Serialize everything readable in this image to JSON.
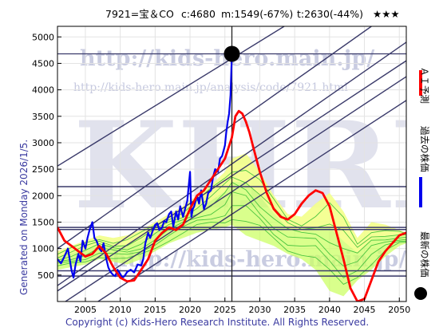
{
  "header": {
    "ticker": "7921=宝＆CO",
    "current": "c:4680",
    "min_label": "m:1549(-67%)",
    "target_label": "t:2630(-44%)",
    "rating": "★★★"
  },
  "side_note": "Generated on Monday 2026/1/5.",
  "legend": {
    "prediction": "ＡＩ予測",
    "past": "過去の株価",
    "latest": "最新の株価"
  },
  "watermark": {
    "url_main": "http://kids-hero.main.jp/",
    "url_sub": "http://kids-hero.main.jp/analysis/code/7921.html",
    "big": "KHRI",
    "url_lower": "http://kids-hero.main.jp/"
  },
  "copyright": "Copyright (c) Kids-Hero Research Institute. All Rights Reserved.",
  "colors": {
    "past": "#0000ee",
    "prediction": "#ff0000",
    "band_fill": "#ccff66",
    "band_alt": "#ffff99",
    "band_lines": "#33bb33",
    "channel": "#3a3a6a",
    "latest_dot": "#000000"
  },
  "chart_data": {
    "type": "line",
    "xlim": [
      2001,
      2051
    ],
    "ylim": [
      0,
      5200
    ],
    "x_ticks": [
      2005,
      2010,
      2015,
      2020,
      2025,
      2030,
      2035,
      2040,
      2045,
      2050
    ],
    "y_ticks": [
      500,
      1000,
      1500,
      2000,
      2500,
      3000,
      3500,
      4000,
      4500,
      5000
    ],
    "latest": {
      "x": 2026.0,
      "y": 4680
    },
    "horizontal_levels": [
      4680,
      2170,
      1400,
      1360,
      580,
      480
    ],
    "channels": [
      {
        "x": [
          2001,
          2033.5
        ],
        "y": [
          2560,
          5200
        ]
      },
      {
        "x": [
          2001,
          2046
        ],
        "y": [
          1000,
          5200
        ]
      },
      {
        "x": [
          2001,
          2051
        ],
        "y": [
          300,
          4900
        ]
      },
      {
        "x": [
          2001,
          2051
        ],
        "y": [
          200,
          4550
        ]
      },
      {
        "x": [
          2001,
          2051
        ],
        "y": [
          -100,
          4250
        ]
      },
      {
        "x": [
          2001,
          2051
        ],
        "y": [
          -500,
          3800
        ]
      }
    ],
    "series": [
      {
        "id": "past",
        "x": [
          2001,
          2001.5,
          2002,
          2002.5,
          2003,
          2003.3,
          2003.6,
          2004,
          2004.3,
          2004.6,
          2005,
          2005.3,
          2005.6,
          2006,
          2006.3,
          2006.6,
          2007,
          2007.3,
          2007.6,
          2008,
          2008.3,
          2008.6,
          2009,
          2009.3,
          2009.6,
          2010,
          2010.3,
          2010.6,
          2011,
          2011.5,
          2012,
          2012.5,
          2013,
          2013.3,
          2013.6,
          2014,
          2014.3,
          2014.6,
          2015,
          2015.3,
          2015.6,
          2016,
          2016.3,
          2016.6,
          2017,
          2017.3,
          2017.6,
          2018,
          2018.3,
          2018.6,
          2019,
          2019.3,
          2019.6,
          2020,
          2020.2,
          2020.4,
          2020.6,
          2021,
          2021.3,
          2021.6,
          2022,
          2022.3,
          2022.6,
          2023,
          2023.3,
          2023.6,
          2024,
          2024.3,
          2024.6,
          2025,
          2025.2,
          2025.4,
          2025.6,
          2025.8,
          2026.0
        ],
        "y": [
          800,
          720,
          850,
          1000,
          600,
          450,
          700,
          900,
          760,
          1150,
          1000,
          1200,
          1350,
          1500,
          1200,
          1150,
          1000,
          950,
          1100,
          800,
          640,
          560,
          500,
          480,
          600,
          520,
          450,
          480,
          560,
          600,
          550,
          700,
          680,
          800,
          1100,
          1300,
          1200,
          1320,
          1450,
          1480,
          1350,
          1400,
          1520,
          1500,
          1650,
          1700,
          1420,
          1700,
          1550,
          1800,
          1600,
          1750,
          1900,
          2450,
          1600,
          1750,
          1800,
          2000,
          1850,
          2100,
          1750,
          1850,
          2050,
          2100,
          2350,
          2500,
          2450,
          2700,
          2750,
          2950,
          3200,
          3400,
          3550,
          3900,
          4680
        ]
      },
      {
        "id": "prediction",
        "x": [
          2001,
          2002,
          2003,
          2004,
          2005,
          2006,
          2007,
          2008,
          2009,
          2010,
          2011,
          2012,
          2013,
          2014,
          2015,
          2016,
          2017,
          2018,
          2019,
          2020,
          2021,
          2022,
          2023,
          2024,
          2025,
          2026,
          2026.5,
          2027,
          2027.5,
          2028,
          2028.5,
          2029,
          2029.5,
          2030,
          2031,
          2032,
          2033,
          2034,
          2035,
          2036,
          2037,
          2038,
          2039,
          2040,
          2041,
          2042,
          2043,
          2044,
          2045,
          2046,
          2047,
          2048,
          2049,
          2050,
          2051
        ],
        "y": [
          1400,
          1150,
          1050,
          950,
          850,
          900,
          1050,
          900,
          650,
          450,
          380,
          400,
          600,
          800,
          1150,
          1300,
          1400,
          1350,
          1450,
          1750,
          2000,
          2100,
          2300,
          2500,
          2700,
          3100,
          3500,
          3600,
          3550,
          3400,
          3200,
          2950,
          2700,
          2450,
          2050,
          1750,
          1600,
          1550,
          1650,
          1850,
          2000,
          2100,
          2050,
          1800,
          1300,
          800,
          250,
          0,
          50,
          400,
          750,
          950,
          1100,
          1250,
          1300
        ]
      }
    ],
    "band": {
      "x": [
        2001,
        2003,
        2005,
        2007,
        2009,
        2011,
        2013,
        2015,
        2017,
        2019,
        2021,
        2023,
        2025,
        2026,
        2028,
        2030,
        2032,
        2034,
        2036,
        2038,
        2040,
        2042,
        2044,
        2046,
        2048,
        2050,
        2051
      ],
      "upper": [
        950,
        1050,
        1150,
        1250,
        1200,
        1250,
        1350,
        1500,
        1650,
        1800,
        2000,
        2200,
        2450,
        2700,
        2800,
        2450,
        2000,
        1650,
        1600,
        1850,
        2050,
        1700,
        1200,
        1500,
        1450,
        1350,
        1300
      ],
      "lower": [
        600,
        650,
        700,
        800,
        750,
        700,
        800,
        950,
        1100,
        1200,
        1300,
        1350,
        1400,
        1450,
        1250,
        1150,
        1050,
        900,
        800,
        600,
        200,
        100,
        400,
        600,
        850,
        1050,
        1100
      ]
    }
  }
}
